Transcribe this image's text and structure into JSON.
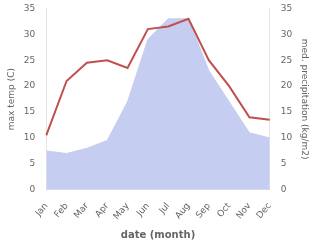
{
  "chart_data": {
    "type": "line",
    "xlabel": "date (month)",
    "ylabel": "max temp (C)",
    "y2label": "med. precipitation (kg/m2)",
    "categories": [
      "Jan",
      "Feb",
      "Mar",
      "Apr",
      "May",
      "Jun",
      "Jul",
      "Aug",
      "Sep",
      "Oct",
      "Nov",
      "Dec"
    ],
    "series": [
      {
        "type": "area",
        "color": "#c5cef0",
        "values": [
          7.5,
          7.0,
          8.0,
          9.5,
          17.0,
          29.0,
          33.0,
          33.0,
          23.0,
          17.0,
          11.0,
          10.0
        ]
      },
      {
        "type": "line",
        "color": "#c0504d",
        "values": [
          10.5,
          21.0,
          24.5,
          25.0,
          23.5,
          31.0,
          31.5,
          33.0,
          25.0,
          20.0,
          14.0,
          13.5
        ]
      }
    ],
    "ylim": [
      0,
      35
    ],
    "yticks": [
      0,
      5,
      10,
      15,
      20,
      25,
      30,
      35
    ],
    "y2lim": [
      0,
      35
    ],
    "y2ticks": [
      0,
      5,
      10,
      15,
      20,
      25,
      30,
      35
    ],
    "grid": false
  }
}
